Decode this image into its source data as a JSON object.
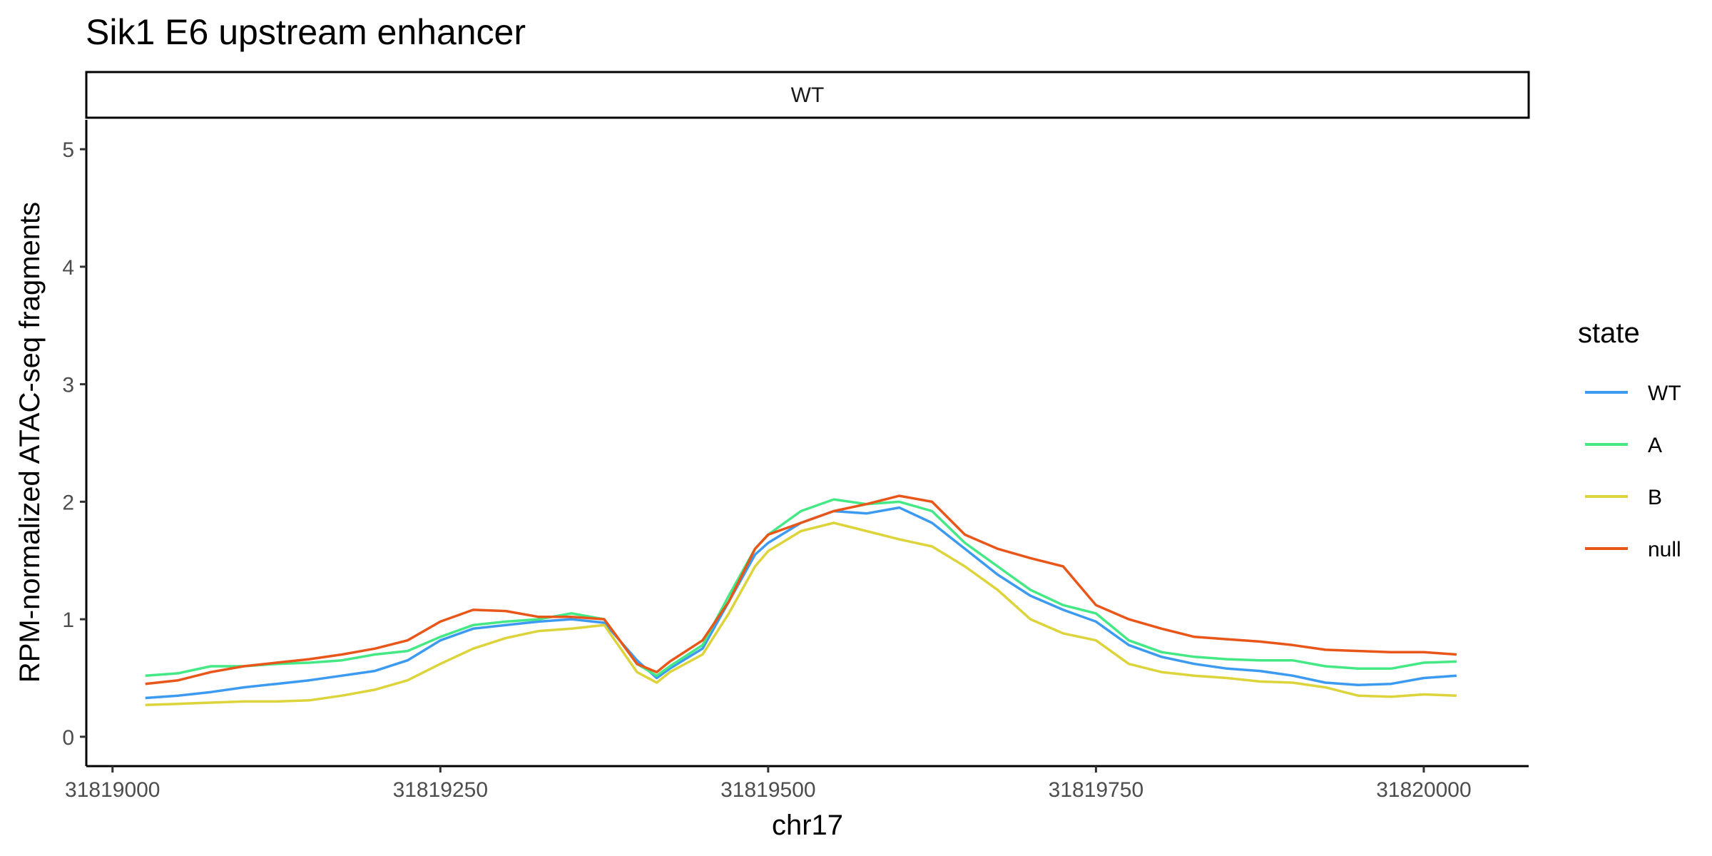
{
  "chart_data": {
    "type": "line",
    "title": "Sik1 E6 upstream enhancer",
    "facet_label": "WT",
    "xlabel": "chr17",
    "ylabel": "RPM-normalized ATAC-seq fragments",
    "xlim": [
      31818980,
      31820080
    ],
    "ylim": [
      -0.25,
      5.25
    ],
    "x_ticks": [
      31819000,
      31819250,
      31819500,
      31819750,
      31820000
    ],
    "x_tick_labels": [
      "31819000",
      "31819250",
      "31819500",
      "31819750",
      "31820000"
    ],
    "y_ticks": [
      0,
      1,
      2,
      3,
      4,
      5
    ],
    "y_tick_labels": [
      "0",
      "1",
      "2",
      "3",
      "4",
      "5"
    ],
    "grid": false,
    "legend": {
      "title": "state",
      "position": "right"
    },
    "x": [
      31819025,
      31819050,
      31819075,
      31819100,
      31819125,
      31819150,
      31819175,
      31819200,
      31819225,
      31819250,
      31819275,
      31819300,
      31819325,
      31819350,
      31819375,
      31819400,
      31819415,
      31819425,
      31819450,
      31819470,
      31819490,
      31819500,
      31819525,
      31819550,
      31819575,
      31819600,
      31819625,
      31819650,
      31819675,
      31819700,
      31819725,
      31819750,
      31819775,
      31819800,
      31819825,
      31819850,
      31819875,
      31819900,
      31819925,
      31819950,
      31819975,
      31820000,
      31820025
    ],
    "series": [
      {
        "name": "WT",
        "color": "#3C9AF0",
        "values": [
          0.33,
          0.35,
          0.38,
          0.42,
          0.45,
          0.48,
          0.52,
          0.56,
          0.65,
          0.82,
          0.92,
          0.95,
          0.98,
          1.0,
          0.97,
          0.65,
          0.5,
          0.58,
          0.75,
          1.15,
          1.55,
          1.65,
          1.82,
          1.92,
          1.9,
          1.95,
          1.82,
          1.6,
          1.38,
          1.2,
          1.08,
          0.98,
          0.78,
          0.68,
          0.62,
          0.58,
          0.56,
          0.52,
          0.46,
          0.44,
          0.45,
          0.5,
          0.52
        ]
      },
      {
        "name": "A",
        "color": "#44E985",
        "values": [
          0.52,
          0.54,
          0.6,
          0.6,
          0.62,
          0.63,
          0.65,
          0.7,
          0.73,
          0.85,
          0.95,
          0.98,
          1.0,
          1.05,
          1.0,
          0.62,
          0.52,
          0.6,
          0.78,
          1.2,
          1.6,
          1.72,
          1.92,
          2.02,
          1.98,
          2.0,
          1.92,
          1.65,
          1.45,
          1.25,
          1.12,
          1.05,
          0.82,
          0.72,
          0.68,
          0.66,
          0.65,
          0.65,
          0.6,
          0.58,
          0.58,
          0.63,
          0.64
        ]
      },
      {
        "name": "B",
        "color": "#DDD43B",
        "values": [
          0.27,
          0.28,
          0.29,
          0.3,
          0.3,
          0.31,
          0.35,
          0.4,
          0.48,
          0.62,
          0.75,
          0.84,
          0.9,
          0.92,
          0.95,
          0.55,
          0.46,
          0.55,
          0.7,
          1.05,
          1.45,
          1.58,
          1.75,
          1.82,
          1.75,
          1.68,
          1.62,
          1.45,
          1.25,
          1.0,
          0.88,
          0.82,
          0.62,
          0.55,
          0.52,
          0.5,
          0.47,
          0.46,
          0.42,
          0.35,
          0.34,
          0.36,
          0.35
        ]
      },
      {
        "name": "null",
        "color": "#E8561A",
        "values": [
          0.45,
          0.48,
          0.55,
          0.6,
          0.63,
          0.66,
          0.7,
          0.75,
          0.82,
          0.98,
          1.08,
          1.07,
          1.02,
          1.02,
          1.0,
          0.62,
          0.55,
          0.64,
          0.82,
          1.15,
          1.6,
          1.72,
          1.82,
          1.92,
          1.98,
          2.05,
          2.0,
          1.72,
          1.6,
          1.52,
          1.45,
          1.12,
          1.0,
          0.92,
          0.85,
          0.83,
          0.81,
          0.78,
          0.74,
          0.73,
          0.72,
          0.72,
          0.7
        ]
      }
    ]
  }
}
